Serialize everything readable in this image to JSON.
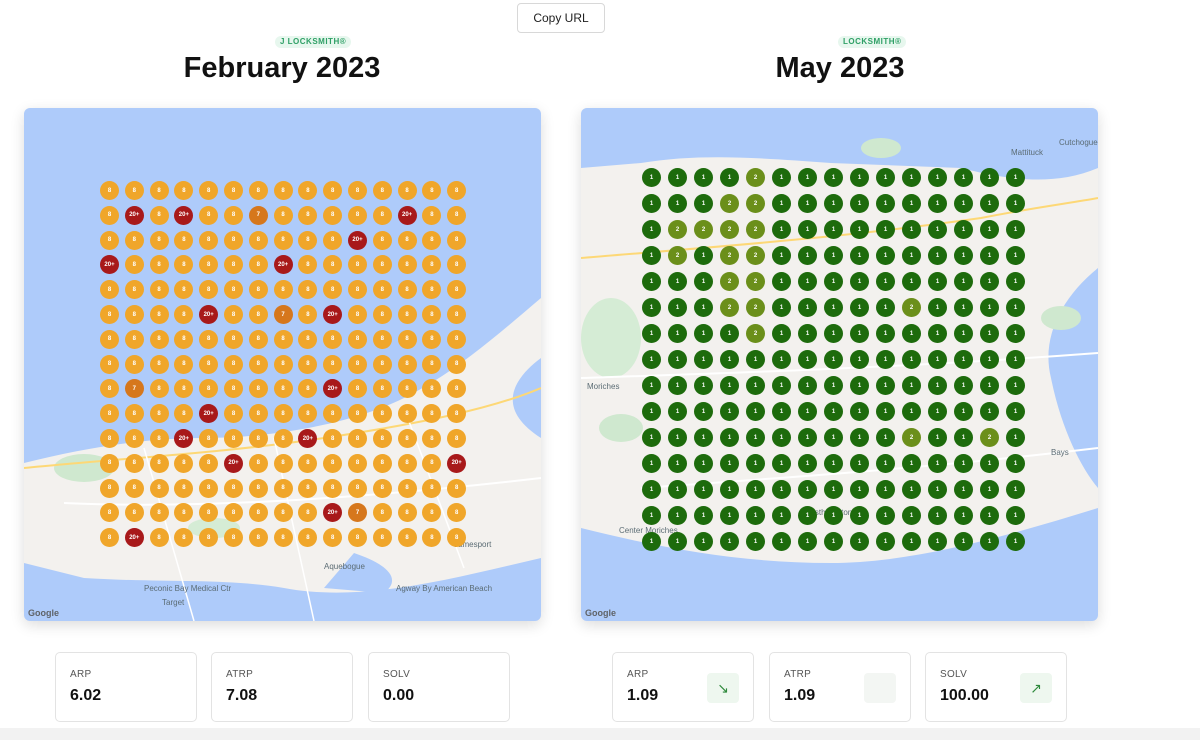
{
  "toolbar": {
    "copy_label": "Copy URL"
  },
  "panels": [
    {
      "id": "feb",
      "brand": "J LOCKSMITH®",
      "title": "February 2023",
      "colors": {
        "1": "#1d6b0c",
        "2": "#6b8f1a",
        "7": "#d6771c",
        "8": "#f0a62a",
        "20+": "#a8191a"
      },
      "grid_rows": [
        [
          "8",
          "8",
          "8",
          "8",
          "8",
          "8",
          "8",
          "8",
          "8",
          "8",
          "8",
          "8",
          "8",
          "8",
          "8"
        ],
        [
          "8",
          "20+",
          "8",
          "20+",
          "8",
          "8",
          "7",
          "8",
          "8",
          "8",
          "8",
          "8",
          "20+",
          "8",
          "8"
        ],
        [
          "8",
          "8",
          "8",
          "8",
          "8",
          "8",
          "8",
          "8",
          "8",
          "8",
          "20+",
          "8",
          "8",
          "8",
          "8"
        ],
        [
          "20+",
          "8",
          "8",
          "8",
          "8",
          "8",
          "8",
          "20+",
          "8",
          "8",
          "8",
          "8",
          "8",
          "8",
          "8"
        ],
        [
          "8",
          "8",
          "8",
          "8",
          "8",
          "8",
          "8",
          "8",
          "8",
          "8",
          "8",
          "8",
          "8",
          "8",
          "8"
        ],
        [
          "8",
          "8",
          "8",
          "8",
          "20+",
          "8",
          "8",
          "7",
          "8",
          "20+",
          "8",
          "8",
          "8",
          "8",
          "8"
        ],
        [
          "8",
          "8",
          "8",
          "8",
          "8",
          "8",
          "8",
          "8",
          "8",
          "8",
          "8",
          "8",
          "8",
          "8",
          "8"
        ],
        [
          "8",
          "8",
          "8",
          "8",
          "8",
          "8",
          "8",
          "8",
          "8",
          "8",
          "8",
          "8",
          "8",
          "8",
          "8"
        ],
        [
          "8",
          "7",
          "8",
          "8",
          "8",
          "8",
          "8",
          "8",
          "8",
          "20+",
          "8",
          "8",
          "8",
          "8",
          "8"
        ],
        [
          "8",
          "8",
          "8",
          "8",
          "20+",
          "8",
          "8",
          "8",
          "8",
          "8",
          "8",
          "8",
          "8",
          "8",
          "8"
        ],
        [
          "8",
          "8",
          "8",
          "20+",
          "8",
          "8",
          "8",
          "8",
          "20+",
          "8",
          "8",
          "8",
          "8",
          "8",
          "8"
        ],
        [
          "8",
          "8",
          "8",
          "8",
          "8",
          "20+",
          "8",
          "8",
          "8",
          "8",
          "8",
          "8",
          "8",
          "8",
          "20+"
        ],
        [
          "8",
          "8",
          "8",
          "8",
          "8",
          "8",
          "8",
          "8",
          "8",
          "8",
          "8",
          "8",
          "8",
          "8",
          "8"
        ],
        [
          "8",
          "8",
          "8",
          "8",
          "8",
          "8",
          "8",
          "8",
          "8",
          "20+",
          "7",
          "8",
          "8",
          "8",
          "8"
        ],
        [
          "8",
          "20+",
          "8",
          "8",
          "8",
          "8",
          "8",
          "8",
          "8",
          "8",
          "8",
          "8",
          "8",
          "8",
          "8"
        ]
      ],
      "places": [
        "Aquebogue",
        "Jamesport",
        "Peconic Bay Medical Ctr",
        "Target",
        "Agway By American Beach"
      ],
      "stats": [
        {
          "label": "ARP",
          "value": "6.02",
          "trend": "none"
        },
        {
          "label": "ATRP",
          "value": "7.08",
          "trend": "none"
        },
        {
          "label": "SOLV",
          "value": "0.00",
          "trend": "none"
        }
      ]
    },
    {
      "id": "may",
      "brand": "LOCKSMITH®",
      "title": "May 2023",
      "colors": {
        "1": "#1d6b0c",
        "2": "#6b8f1a",
        "7": "#d6771c",
        "8": "#f0a62a",
        "20+": "#a8191a"
      },
      "grid_rows": [
        [
          "1",
          "1",
          "1",
          "1",
          "2",
          "1",
          "1",
          "1",
          "1",
          "1",
          "1",
          "1",
          "1",
          "1",
          "1"
        ],
        [
          "1",
          "1",
          "1",
          "2",
          "2",
          "1",
          "1",
          "1",
          "1",
          "1",
          "1",
          "1",
          "1",
          "1",
          "1"
        ],
        [
          "1",
          "2",
          "2",
          "2",
          "2",
          "1",
          "1",
          "1",
          "1",
          "1",
          "1",
          "1",
          "1",
          "1",
          "1"
        ],
        [
          "1",
          "2",
          "1",
          "2",
          "2",
          "1",
          "1",
          "1",
          "1",
          "1",
          "1",
          "1",
          "1",
          "1",
          "1"
        ],
        [
          "1",
          "1",
          "1",
          "2",
          "2",
          "1",
          "1",
          "1",
          "1",
          "1",
          "1",
          "1",
          "1",
          "1",
          "1"
        ],
        [
          "1",
          "1",
          "1",
          "2",
          "2",
          "1",
          "1",
          "1",
          "1",
          "1",
          "2",
          "1",
          "1",
          "1",
          "1"
        ],
        [
          "1",
          "1",
          "1",
          "1",
          "2",
          "1",
          "1",
          "1",
          "1",
          "1",
          "1",
          "1",
          "1",
          "1",
          "1"
        ],
        [
          "1",
          "1",
          "1",
          "1",
          "1",
          "1",
          "1",
          "1",
          "1",
          "1",
          "1",
          "1",
          "1",
          "1",
          "1"
        ],
        [
          "1",
          "1",
          "1",
          "1",
          "1",
          "1",
          "1",
          "1",
          "1",
          "1",
          "1",
          "1",
          "1",
          "1",
          "1"
        ],
        [
          "1",
          "1",
          "1",
          "1",
          "1",
          "1",
          "1",
          "1",
          "1",
          "1",
          "1",
          "1",
          "1",
          "1",
          "1"
        ],
        [
          "1",
          "1",
          "1",
          "1",
          "1",
          "1",
          "1",
          "1",
          "1",
          "1",
          "2",
          "1",
          "1",
          "2",
          "1"
        ],
        [
          "1",
          "1",
          "1",
          "1",
          "1",
          "1",
          "1",
          "1",
          "1",
          "1",
          "1",
          "1",
          "1",
          "1",
          "1"
        ],
        [
          "1",
          "1",
          "1",
          "1",
          "1",
          "1",
          "1",
          "1",
          "1",
          "1",
          "1",
          "1",
          "1",
          "1",
          "1"
        ],
        [
          "1",
          "1",
          "1",
          "1",
          "1",
          "1",
          "1",
          "1",
          "1",
          "1",
          "1",
          "1",
          "1",
          "1",
          "1"
        ],
        [
          "1",
          "1",
          "1",
          "1",
          "1",
          "1",
          "1",
          "1",
          "1",
          "1",
          "1",
          "1",
          "1",
          "1",
          "1"
        ]
      ],
      "places": [
        "Mattituck",
        "Cutchogue",
        "Moriches",
        "Center Moriches",
        "Westhampton",
        "Bays"
      ],
      "stats": [
        {
          "label": "ARP",
          "value": "1.09",
          "trend": "down"
        },
        {
          "label": "ATRP",
          "value": "1.09",
          "trend": "blank"
        },
        {
          "label": "SOLV",
          "value": "100.00",
          "trend": "up"
        }
      ]
    }
  ],
  "map_attribution": "Google",
  "icons": {
    "trend_down": "arrow-down-right-icon",
    "trend_up": "arrow-up-right-icon"
  }
}
